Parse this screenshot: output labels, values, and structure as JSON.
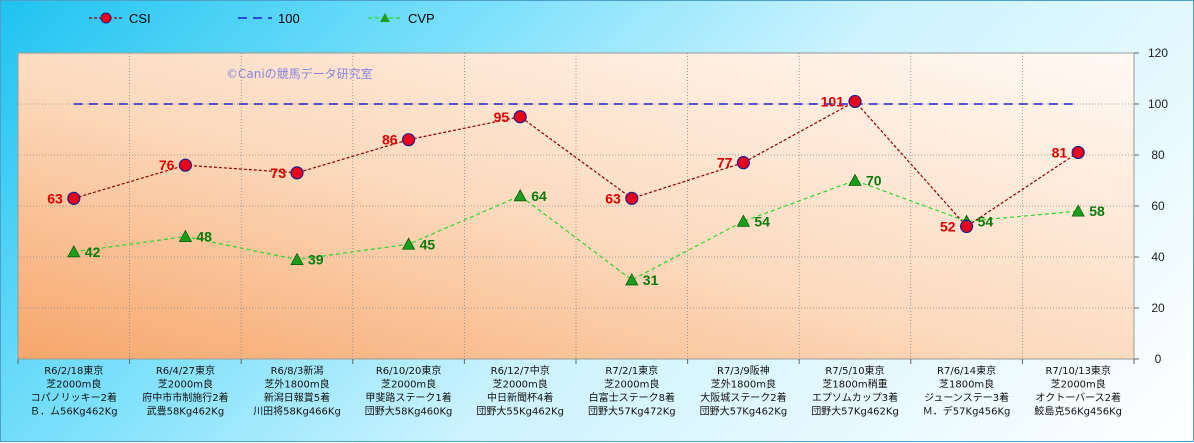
{
  "chart": {
    "watermark": "©Caniの競馬データ研究室"
  },
  "chart_data": {
    "type": "line",
    "title": "",
    "xlabel": "",
    "ylabel": "",
    "ylim": [
      0,
      120
    ],
    "yticks": [
      0,
      20,
      40,
      60,
      80,
      100,
      120
    ],
    "grid": true,
    "legend_position": "top-left",
    "categories": [
      [
        "R6/2/18東京",
        "芝2000m良",
        "コパノリッキー2着",
        "Ｂ．ム56Kg462Kg"
      ],
      [
        "R6/4/27東京",
        "芝2000m良",
        "府中市市制施行2着",
        "武豊58Kg462Kg"
      ],
      [
        "R6/8/3新潟",
        "芝外1800m良",
        "新潟日報賞5着",
        "川田将58Kg466Kg"
      ],
      [
        "R6/10/20東京",
        "芝2000m良",
        "甲斐路ステーク1着",
        "団野大58Kg460Kg"
      ],
      [
        "R6/12/7中京",
        "芝2000m良",
        "中日新聞杯4着",
        "団野大55Kg462Kg"
      ],
      [
        "R7/2/1東京",
        "芝2000m良",
        "白富士ステーク8着",
        "団野大57Kg472Kg"
      ],
      [
        "R7/3/9阪神",
        "芝外1800m良",
        "大阪城ステーク2着",
        "団野大57Kg462Kg"
      ],
      [
        "R7/5/10東京",
        "芝1800m稍重",
        "エプソムカップ3着",
        "団野大57Kg462Kg"
      ],
      [
        "R7/6/14東京",
        "芝1800m良",
        "ジューンステー3着",
        "Ｍ．デ57Kg456Kg"
      ],
      [
        "R7/10/13東京",
        "芝2000m良",
        "オクトーバース2着",
        "鮫島克56Kg456Kg"
      ]
    ],
    "series": [
      {
        "name": "CSI",
        "values": [
          63,
          76,
          73,
          86,
          95,
          63,
          77,
          101,
          52,
          81
        ],
        "color": "#8b0000",
        "marker": "circle",
        "marker_color": "#e8001c",
        "label_color": "#e00000"
      },
      {
        "name": "100",
        "values": [
          100,
          100,
          100,
          100,
          100,
          100,
          100,
          100,
          100,
          100
        ],
        "color": "#1f1fd0",
        "marker": "none"
      },
      {
        "name": "CVP",
        "values": [
          42,
          48,
          39,
          45,
          64,
          31,
          54,
          70,
          54,
          58
        ],
        "color": "#2ad52a",
        "marker": "triangle",
        "label_color": "#0a7a0a"
      }
    ]
  }
}
